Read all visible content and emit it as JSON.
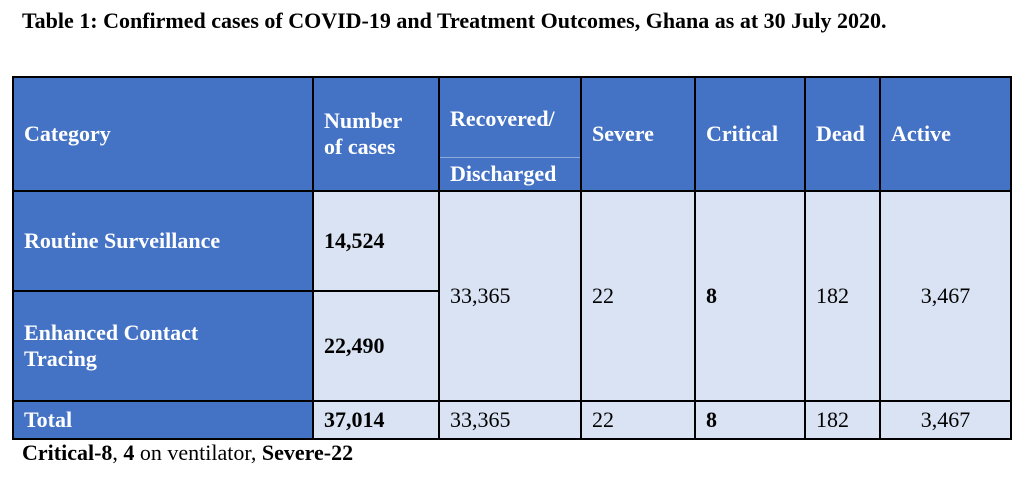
{
  "caption": "Table 1: Confirmed cases of COVID-19 and Treatment Outcomes, Ghana as at 30 July 2020.",
  "table": {
    "headers": {
      "category": "Category",
      "number_of_cases_1": "Number",
      "number_of_cases_2": "of cases",
      "recovered_1": "Recovered/",
      "recovered_2": "Discharged",
      "severe": "Severe",
      "critical": "Critical",
      "dead": "Dead",
      "active": "Active"
    },
    "rows": [
      {
        "category": "Routine Surveillance",
        "cases": "14,524"
      },
      {
        "category_1": "Enhanced Contact",
        "category_2": "Tracing",
        "cases": "22,490"
      }
    ],
    "merged": {
      "recovered": "33,365",
      "severe": "22",
      "critical": "8",
      "dead": "182",
      "active": "3,467"
    },
    "total": {
      "label": "Total",
      "cases": "37,014",
      "recovered": "33,365",
      "severe": "22",
      "critical": "8",
      "dead": "182",
      "active": "3,467"
    }
  },
  "footnote": {
    "part1": "Critical-8",
    "part2": ", ",
    "part3": "4",
    "part4": " on ventilator, ",
    "part5": "Severe-22"
  },
  "colors": {
    "header_blue": "#4472c4",
    "body_light_blue": "#dae3f3"
  }
}
